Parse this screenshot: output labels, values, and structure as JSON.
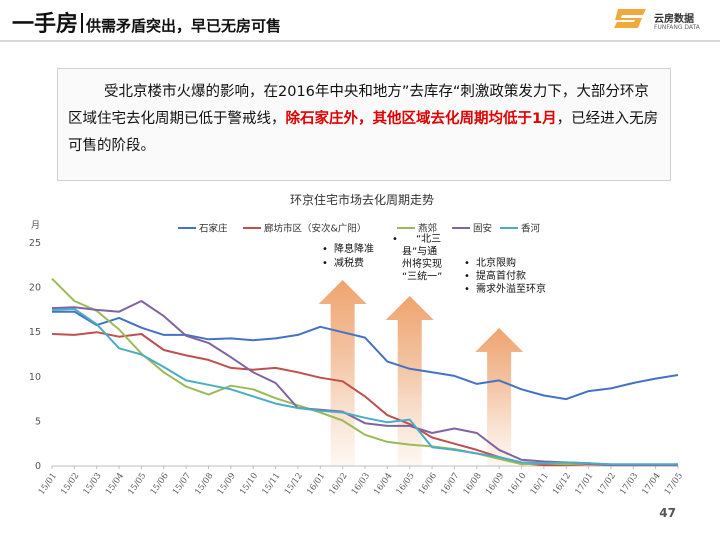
{
  "header": {
    "title_main": "一手房",
    "title_sub": "供需矛盾突出，早已无房可售"
  },
  "logo": {
    "name": "云房数据",
    "en": "FUNFANG DATA"
  },
  "summary": {
    "part1": "受北京楼市火爆的影响，在2016年中央和地方”去库存“刺激政策发力下，大部分环京区域住宅去化周期已低于警戒线，",
    "highlight": "除石家庄外，其他区域去化周期均低于1月",
    "part2": "，已经进入无房可售的阶段。"
  },
  "page_number": "47",
  "chart_data": {
    "type": "line",
    "title": "环京住宅市场去化周期走势",
    "ylabel": "月",
    "ylim": [
      0,
      25
    ],
    "yticks": [
      0,
      5,
      10,
      15,
      20,
      25
    ],
    "grid": false,
    "legend_position": "top",
    "categories": [
      "15/01",
      "15/02",
      "15/03",
      "15/04",
      "15/05",
      "15/06",
      "15/07",
      "15/08",
      "15/09",
      "15/10",
      "15/11",
      "15/12",
      "16/01",
      "16/02",
      "16/03",
      "16/04",
      "16/05",
      "16/06",
      "16/07",
      "16/08",
      "16/09",
      "16/10",
      "16/11",
      "16/12",
      "17/01",
      "17/02",
      "17/03",
      "17/04",
      "17/05"
    ],
    "series": [
      {
        "name": "石家庄",
        "color": "#4472C4",
        "values": [
          17.3,
          17.3,
          15.8,
          16.6,
          15.5,
          14.7,
          14.7,
          14.2,
          14.3,
          14.1,
          14.3,
          14.7,
          15.6,
          15.0,
          14.4,
          11.7,
          10.9,
          10.5,
          10.1,
          9.2,
          9.6,
          8.6,
          7.9,
          7.5,
          8.4,
          8.7,
          9.3,
          9.8,
          10.2
        ]
      },
      {
        "name": "廊坊市区（安次&广阳）",
        "color": "#C0504D",
        "values": [
          14.8,
          14.7,
          15.0,
          14.5,
          14.8,
          13.0,
          12.4,
          11.9,
          11.0,
          10.8,
          11.0,
          10.5,
          9.9,
          9.5,
          7.8,
          5.7,
          4.7,
          3.2,
          2.5,
          1.8,
          1.0,
          0.3,
          0.1,
          0.1,
          0.2,
          0.1,
          0.1,
          0.1,
          0.1
        ]
      },
      {
        "name": "燕郊",
        "color": "#9BBB59",
        "values": [
          21.0,
          18.5,
          17.4,
          15.3,
          12.6,
          10.5,
          8.9,
          8.0,
          9.0,
          8.6,
          7.6,
          6.8,
          6.0,
          5.1,
          3.5,
          2.7,
          2.4,
          2.2,
          1.9,
          1.4,
          0.8,
          0.2,
          0.3,
          0.2,
          0.3,
          0.1,
          0.1,
          0.1,
          0.2
        ]
      },
      {
        "name": "固安",
        "color": "#8064A2",
        "values": [
          17.7,
          17.8,
          17.5,
          17.3,
          18.5,
          16.8,
          14.6,
          13.8,
          12.2,
          10.5,
          9.3,
          6.5,
          6.3,
          6.1,
          4.8,
          4.5,
          4.5,
          3.7,
          4.2,
          3.7,
          1.8,
          0.7,
          0.5,
          0.4,
          0.3,
          0.1,
          0.1,
          0.1,
          0.1
        ]
      },
      {
        "name": "香河",
        "color": "#4BACC6",
        "values": [
          17.5,
          17.6,
          15.9,
          13.2,
          12.5,
          11.1,
          9.6,
          9.1,
          8.6,
          7.8,
          7.0,
          6.5,
          6.2,
          6.0,
          5.4,
          4.9,
          5.2,
          2.1,
          1.8,
          1.4,
          1.0,
          0.4,
          0.3,
          0.4,
          0.3,
          0.2,
          0.2,
          0.2,
          0.2
        ]
      }
    ],
    "annotations": [
      {
        "at": "16/02",
        "lines": [
          "降息降准",
          "减税费"
        ]
      },
      {
        "at": "16/05",
        "lines": [
          "“北三",
          "县”与通",
          "州将实现",
          "“三统一”"
        ]
      },
      {
        "at": "16/09",
        "lines": [
          "北京限购",
          "提高首付款",
          "需求外溢至环京"
        ]
      }
    ]
  }
}
